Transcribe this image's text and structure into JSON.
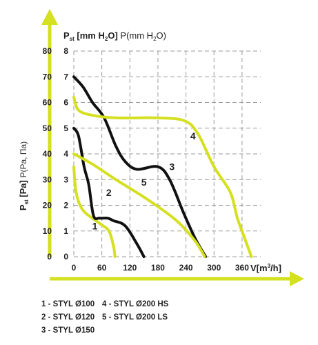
{
  "chart_data": {
    "type": "line",
    "y_left": {
      "label_main": "P",
      "label_sub": "st",
      "label_unit": "[Pa]",
      "label_extra": "P(Pa, Па)",
      "ticks": [
        "0",
        "10",
        "20",
        "30",
        "40",
        "50",
        "60",
        "70",
        "80"
      ],
      "ylim": [
        0,
        80
      ]
    },
    "y_right": {
      "label_main": "P",
      "label_sub": "st",
      "label_unit": "[mm H",
      "label_unit_sub": "2",
      "label_unit_end": "O]",
      "label_extra": "P(mm H",
      "label_extra_sub": "2",
      "label_extra_end": "O)",
      "ticks": [
        "0",
        "1",
        "2",
        "3",
        "4",
        "5",
        "6",
        "7",
        "8"
      ],
      "ylim": [
        0,
        8
      ]
    },
    "x": {
      "label_main": "V[m",
      "label_sup": "3",
      "label_end": "/h]",
      "ticks": [
        "0",
        "60",
        "120",
        "180",
        "240",
        "300",
        "360"
      ],
      "xlim": [
        0,
        400
      ]
    },
    "grid": true,
    "series": [
      {
        "name": "1",
        "color": "#d4e020",
        "points": [
          [
            0,
            35
          ],
          [
            5,
            25
          ],
          [
            20,
            18
          ],
          [
            55,
            13
          ],
          [
            75,
            10
          ],
          [
            85,
            4
          ],
          [
            88,
            0
          ]
        ]
      },
      {
        "name": "2",
        "color": "#111111",
        "points": [
          [
            0,
            50
          ],
          [
            10,
            47
          ],
          [
            22,
            35
          ],
          [
            32,
            28
          ],
          [
            42,
            16
          ],
          [
            55,
            15
          ],
          [
            72,
            15
          ],
          [
            85,
            14
          ],
          [
            110,
            12
          ],
          [
            135,
            5
          ],
          [
            150,
            0
          ]
        ]
      },
      {
        "name": "3",
        "color": "#111111",
        "points": [
          [
            0,
            70
          ],
          [
            20,
            66
          ],
          [
            40,
            60
          ],
          [
            65,
            54
          ],
          [
            90,
            43
          ],
          [
            110,
            37
          ],
          [
            135,
            34
          ],
          [
            180,
            35
          ],
          [
            205,
            30
          ],
          [
            235,
            17
          ],
          [
            260,
            7
          ],
          [
            282,
            0
          ]
        ]
      },
      {
        "name": "4",
        "color": "#d4e020",
        "points": [
          [
            0,
            62
          ],
          [
            10,
            57
          ],
          [
            40,
            55
          ],
          [
            90,
            54
          ],
          [
            175,
            54
          ],
          [
            235,
            53
          ],
          [
            265,
            48
          ],
          [
            300,
            35
          ],
          [
            335,
            25
          ],
          [
            350,
            15
          ],
          [
            368,
            6
          ],
          [
            380,
            0
          ]
        ]
      },
      {
        "name": "5",
        "color": "#d4e020",
        "points": [
          [
            0,
            40
          ],
          [
            40,
            36
          ],
          [
            90,
            30
          ],
          [
            160,
            22
          ],
          [
            220,
            14
          ],
          [
            260,
            6
          ],
          [
            280,
            0
          ]
        ]
      }
    ],
    "annotations": [
      {
        "text": "1",
        "x": 45,
        "y": 12
      },
      {
        "text": "2",
        "x": 75,
        "y": 25
      },
      {
        "text": "3",
        "x": 210,
        "y": 35
      },
      {
        "text": "4",
        "x": 255,
        "y": 47
      },
      {
        "text": "5",
        "x": 150,
        "y": 29
      }
    ],
    "legend": [
      "1 - STYL Ø100",
      "2 - STYL Ø120",
      "3 - STYL Ø150",
      "4 - STYL Ø200 HS",
      "5 - STYL Ø200 LS"
    ]
  }
}
